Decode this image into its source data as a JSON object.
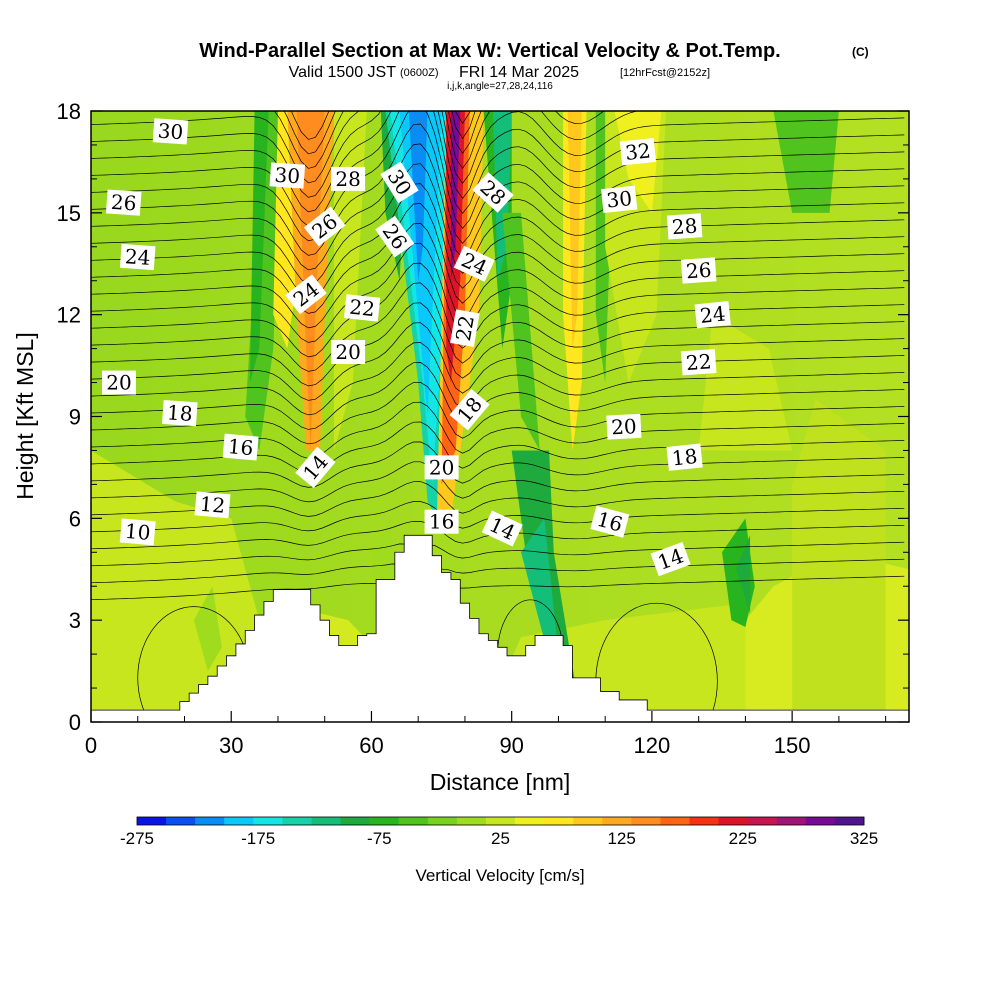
{
  "chart_data": {
    "type": "heatmap",
    "title": "Wind-Parallel Section at Max W: Vertical Velocity & Pot.Temp.",
    "title_mark": "(C)",
    "subtitle_main": "Valid 1500 JST",
    "subtitle_utc": "(0600Z)",
    "subtitle_date": "FRI 14 Mar 2025",
    "subtitle_fcst": "[12hrFcst@2152z]",
    "subtitle_ijk": "i,j,k,angle=27,28,24,116",
    "xlabel": "Distance [nm]",
    "ylabel": "Height [Kft MSL]",
    "xlim": [
      0,
      175
    ],
    "ylim": [
      0,
      18
    ],
    "x_ticks": [
      "0",
      "30",
      "60",
      "90",
      "120",
      "150"
    ],
    "y_ticks": [
      "0",
      "3",
      "6",
      "9",
      "12",
      "15",
      "18"
    ],
    "colorbar": {
      "label": "Vertical Velocity [cm/s]",
      "ticks": [
        "-275",
        "-175",
        "-75",
        "25",
        "125",
        "225",
        "325"
      ],
      "colors": [
        "#0a14e6",
        "#0a50f0",
        "#0a8cf5",
        "#0ac8fa",
        "#14e6e6",
        "#14d2aa",
        "#14be78",
        "#1eaa3c",
        "#28b41e",
        "#50c31e",
        "#78d21e",
        "#a0dc1e",
        "#c8e61e",
        "#f0f01e",
        "#ffe61e",
        "#ffc81e",
        "#ffaa1e",
        "#ff8c1e",
        "#ff6414",
        "#f53214",
        "#dc1428",
        "#c81450",
        "#a01478",
        "#780a96",
        "#50148c"
      ]
    },
    "terrain_kft": [
      [
        0,
        0.35
      ],
      [
        17,
        0.35
      ],
      [
        19,
        0.6
      ],
      [
        21,
        0.85
      ],
      [
        23,
        1.1
      ],
      [
        25,
        1.35
      ],
      [
        27,
        1.65
      ],
      [
        29,
        1.95
      ],
      [
        31,
        2.3
      ],
      [
        33,
        2.7
      ],
      [
        35,
        3.15
      ],
      [
        37,
        3.55
      ],
      [
        39,
        3.9
      ],
      [
        45,
        3.9
      ],
      [
        47,
        3.45
      ],
      [
        49,
        3.0
      ],
      [
        51,
        2.55
      ],
      [
        53,
        2.25
      ],
      [
        55,
        2.25
      ],
      [
        57,
        2.55
      ],
      [
        59,
        2.6
      ],
      [
        61,
        4.2
      ],
      [
        63,
        4.2
      ],
      [
        65,
        5.0
      ],
      [
        67,
        5.5
      ],
      [
        71,
        5.5
      ],
      [
        73,
        4.9
      ],
      [
        75,
        4.4
      ],
      [
        77,
        4.2
      ],
      [
        79,
        3.5
      ],
      [
        81,
        3.05
      ],
      [
        83,
        2.6
      ],
      [
        85,
        2.4
      ],
      [
        87,
        2.2
      ],
      [
        89,
        1.95
      ],
      [
        91,
        1.95
      ],
      [
        93,
        2.25
      ],
      [
        95,
        2.55
      ],
      [
        99,
        2.55
      ],
      [
        101,
        2.25
      ],
      [
        103,
        1.3
      ],
      [
        107,
        1.3
      ],
      [
        109,
        0.9
      ],
      [
        113,
        0.65
      ],
      [
        117,
        0.65
      ],
      [
        119,
        0.35
      ],
      [
        175,
        0.35
      ]
    ],
    "theta_labels": [
      {
        "t": "30",
        "x": 17,
        "y": 17.4,
        "r": 4
      },
      {
        "t": "30",
        "x": 42,
        "y": 16.1,
        "r": 4
      },
      {
        "t": "28",
        "x": 55,
        "y": 16.0,
        "r": 0
      },
      {
        "t": "30",
        "x": 66,
        "y": 15.9,
        "r": 58
      },
      {
        "t": "28",
        "x": 86,
        "y": 15.6,
        "r": 42
      },
      {
        "t": "32",
        "x": 117,
        "y": 16.8,
        "r": -6
      },
      {
        "t": "26",
        "x": 7,
        "y": 15.3,
        "r": 4
      },
      {
        "t": "26",
        "x": 50,
        "y": 14.6,
        "r": -38
      },
      {
        "t": "26",
        "x": 65,
        "y": 14.3,
        "r": 55
      },
      {
        "t": "30",
        "x": 113,
        "y": 15.4,
        "r": -6
      },
      {
        "t": "28",
        "x": 127,
        "y": 14.6,
        "r": -4
      },
      {
        "t": "24",
        "x": 10,
        "y": 13.7,
        "r": 4
      },
      {
        "t": "24",
        "x": 82,
        "y": 13.5,
        "r": 25
      },
      {
        "t": "26",
        "x": 130,
        "y": 13.3,
        "r": -4
      },
      {
        "t": "24",
        "x": 46,
        "y": 12.6,
        "r": -38
      },
      {
        "t": "22",
        "x": 58,
        "y": 12.2,
        "r": 6
      },
      {
        "t": "24",
        "x": 133,
        "y": 12.0,
        "r": -6
      },
      {
        "t": "22",
        "x": 80,
        "y": 11.6,
        "r": -80
      },
      {
        "t": "20",
        "x": 55,
        "y": 10.9,
        "r": 0
      },
      {
        "t": "22",
        "x": 130,
        "y": 10.6,
        "r": -4
      },
      {
        "t": "20",
        "x": 6,
        "y": 10.0,
        "r": 0
      },
      {
        "t": "18",
        "x": 19,
        "y": 9.1,
        "r": 4
      },
      {
        "t": "18",
        "x": 81,
        "y": 9.2,
        "r": -50
      },
      {
        "t": "20",
        "x": 114,
        "y": 8.7,
        "r": -3
      },
      {
        "t": "16",
        "x": 32,
        "y": 8.1,
        "r": 5
      },
      {
        "t": "18",
        "x": 127,
        "y": 7.8,
        "r": -6
      },
      {
        "t": "14",
        "x": 48,
        "y": 7.5,
        "r": -50
      },
      {
        "t": "20",
        "x": 75,
        "y": 7.5,
        "r": 0
      },
      {
        "t": "12",
        "x": 26,
        "y": 6.4,
        "r": 5
      },
      {
        "t": "16",
        "x": 75,
        "y": 5.9,
        "r": 0
      },
      {
        "t": "14",
        "x": 88,
        "y": 5.7,
        "r": 25
      },
      {
        "t": "16",
        "x": 111,
        "y": 5.9,
        "r": 15
      },
      {
        "t": "10",
        "x": 10,
        "y": 5.6,
        "r": 5
      },
      {
        "t": "14",
        "x": 124,
        "y": 4.8,
        "r": -20
      }
    ]
  }
}
